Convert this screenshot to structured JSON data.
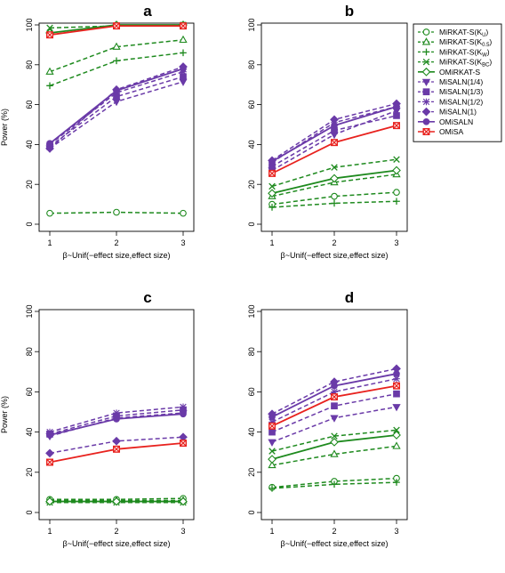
{
  "chart_data": [
    {
      "type": "line",
      "panel": "a",
      "x": [
        1,
        2,
        3
      ],
      "xticks": [
        "1",
        "2",
        "3"
      ],
      "xlabel": "β~Unif(−effect size,effect size)",
      "ylabel": "Power (%)",
      "ylim": [
        0,
        100
      ],
      "yticks": [
        "0",
        "20",
        "40",
        "60",
        "80",
        "100"
      ],
      "series": [
        {
          "name": "MiRKAT-S(K_U)",
          "values": [
            5.5,
            6,
            5.5
          ]
        },
        {
          "name": "MiRKAT-S(K_0.5)",
          "values": [
            76.5,
            89,
            92.5
          ]
        },
        {
          "name": "MiRKAT-S(K_W)",
          "values": [
            69.5,
            82,
            86
          ]
        },
        {
          "name": "MiRKAT-S(K_BC)",
          "values": [
            98.5,
            99.5,
            100
          ]
        },
        {
          "name": "OMiRKAT-S",
          "values": [
            96,
            100,
            100
          ]
        },
        {
          "name": "MiSALN(1/4)",
          "values": [
            38,
            61.5,
            71.5
          ]
        },
        {
          "name": "MiSALN(1/3)",
          "values": [
            39,
            64,
            74
          ]
        },
        {
          "name": "MiSALN(1/2)",
          "values": [
            40,
            66,
            76.5
          ]
        },
        {
          "name": "MiSALN(1)",
          "values": [
            38,
            67.5,
            79
          ]
        },
        {
          "name": "OMiSALN",
          "values": [
            40.5,
            67,
            78
          ]
        },
        {
          "name": "OMiSA",
          "values": [
            95,
            99.5,
            99.5
          ]
        }
      ]
    },
    {
      "type": "line",
      "panel": "b",
      "x": [
        1,
        2,
        3
      ],
      "xticks": [
        "1",
        "2",
        "3"
      ],
      "xlabel": "β~Unif(−effect size,effect size)",
      "ylabel": "",
      "ylim": [
        0,
        100
      ],
      "yticks": [
        "0",
        "20",
        "40",
        "60",
        "80",
        "100"
      ],
      "series": [
        {
          "name": "MiRKAT-S(K_U)",
          "values": [
            10,
            14,
            16
          ]
        },
        {
          "name": "MiRKAT-S(K_0.5)",
          "values": [
            14,
            21,
            25
          ]
        },
        {
          "name": "MiRKAT-S(K_W)",
          "values": [
            8.5,
            10.5,
            11.5
          ]
        },
        {
          "name": "MiRKAT-S(K_BC)",
          "values": [
            19,
            28.5,
            32.5
          ]
        },
        {
          "name": "OMiRKAT-S",
          "values": [
            15.5,
            23,
            27
          ]
        },
        {
          "name": "MiSALN(1/4)",
          "values": [
            27,
            45,
            57
          ]
        },
        {
          "name": "MiSALN(1/3)",
          "values": [
            29,
            47,
            54.5
          ]
        },
        {
          "name": "MiSALN(1/2)",
          "values": [
            31,
            51,
            59
          ]
        },
        {
          "name": "MiSALN(1)",
          "values": [
            32,
            52.5,
            60.5
          ]
        },
        {
          "name": "OMiSALN",
          "values": [
            31.5,
            49.5,
            59
          ]
        },
        {
          "name": "OMiSA",
          "values": [
            25.5,
            41,
            49.5
          ]
        }
      ]
    },
    {
      "type": "line",
      "panel": "c",
      "x": [
        1,
        2,
        3
      ],
      "xticks": [
        "1",
        "2",
        "3"
      ],
      "xlabel": "β~Unif(−effect size,effect size)",
      "ylabel": "Power (%)",
      "ylim": [
        0,
        100
      ],
      "yticks": [
        "0",
        "20",
        "40",
        "60",
        "80",
        "100"
      ],
      "series": [
        {
          "name": "MiRKAT-S(K_U)",
          "values": [
            6.5,
            6.5,
            7
          ]
        },
        {
          "name": "MiRKAT-S(K_0.5)",
          "values": [
            6,
            6,
            6
          ]
        },
        {
          "name": "MiRKAT-S(K_W)",
          "values": [
            5.5,
            5.5,
            5.5
          ]
        },
        {
          "name": "MiRKAT-S(K_BC)",
          "values": [
            5,
            5,
            5
          ]
        },
        {
          "name": "OMiRKAT-S",
          "values": [
            5.5,
            5.5,
            5.5
          ]
        },
        {
          "name": "MiSALN(1/4)",
          "values": [
            38,
            47,
            49.5
          ]
        },
        {
          "name": "MiSALN(1/3)",
          "values": [
            39,
            48,
            51
          ]
        },
        {
          "name": "MiSALN(1/2)",
          "values": [
            40,
            49.5,
            52.5
          ]
        },
        {
          "name": "MiSALN(1)",
          "values": [
            29.5,
            35.5,
            37.5
          ]
        },
        {
          "name": "OMiSALN",
          "values": [
            38.5,
            46.5,
            49
          ]
        },
        {
          "name": "OMiSA",
          "values": [
            25,
            31.5,
            34.5
          ]
        }
      ]
    },
    {
      "type": "line",
      "panel": "d",
      "x": [
        1,
        2,
        3
      ],
      "xticks": [
        "1",
        "2",
        "3"
      ],
      "xlabel": "β~Unif(−effect size,effect size)",
      "ylabel": "",
      "ylim": [
        0,
        100
      ],
      "yticks": [
        "0",
        "20",
        "40",
        "60",
        "80",
        "100"
      ],
      "series": [
        {
          "name": "MiRKAT-S(K_U)",
          "values": [
            12.5,
            15.5,
            17
          ]
        },
        {
          "name": "MiRKAT-S(K_0.5)",
          "values": [
            23.5,
            29,
            33
          ]
        },
        {
          "name": "MiRKAT-S(K_W)",
          "values": [
            12,
            14,
            15
          ]
        },
        {
          "name": "MiRKAT-S(K_BC)",
          "values": [
            30.5,
            38,
            41
          ]
        },
        {
          "name": "OMiRKAT-S",
          "values": [
            26.5,
            35,
            38.5
          ]
        },
        {
          "name": "MiSALN(1/4)",
          "values": [
            35,
            47,
            52.5
          ]
        },
        {
          "name": "MiSALN(1/3)",
          "values": [
            40,
            53,
            59
          ]
        },
        {
          "name": "MiSALN(1/2)",
          "values": [
            45,
            60,
            66.5
          ]
        },
        {
          "name": "MiSALN(1)",
          "values": [
            49,
            65,
            71.5
          ]
        },
        {
          "name": "OMiSALN",
          "values": [
            47.5,
            63,
            69
          ]
        },
        {
          "name": "OMiSA",
          "values": [
            43,
            57.5,
            63
          ]
        }
      ]
    }
  ],
  "legend": {
    "placement": "right",
    "items": [
      {
        "base": "MiRKAT-S(",
        "sub": "U",
        "close": ")",
        "color": "#1e8a1e",
        "marker": "circle-open",
        "dashed": true
      },
      {
        "base": "MiRKAT-S(",
        "sub": "0.5",
        "close": ")",
        "color": "#1e8a1e",
        "marker": "triangle-open",
        "dashed": true
      },
      {
        "base": "MiRKAT-S(",
        "sub": "W",
        "close": ")",
        "color": "#1e8a1e",
        "marker": "plus",
        "dashed": true
      },
      {
        "base": "MiRKAT-S(",
        "sub": "BC",
        "close": ")",
        "color": "#1e8a1e",
        "marker": "cross",
        "dashed": true
      },
      {
        "base": "OMiRKAT-S",
        "sub": "",
        "close": "",
        "color": "#1e8a1e",
        "marker": "diamond-open",
        "dashed": false
      },
      {
        "base": "MiSALN(1/4)",
        "sub": "",
        "close": "",
        "color": "#6a3aa8",
        "marker": "triangle-down",
        "dashed": true
      },
      {
        "base": "MiSALN(1/3)",
        "sub": "",
        "close": "",
        "color": "#6a3aa8",
        "marker": "square",
        "dashed": true
      },
      {
        "base": "MiSALN(1/2)",
        "sub": "",
        "close": "",
        "color": "#6a3aa8",
        "marker": "asterisk",
        "dashed": true
      },
      {
        "base": "MiSALN(1)",
        "sub": "",
        "close": "",
        "color": "#6a3aa8",
        "marker": "diamond",
        "dashed": true
      },
      {
        "base": "OMiSALN",
        "sub": "",
        "close": "",
        "color": "#6a3aa8",
        "marker": "circle",
        "dashed": false
      },
      {
        "base": "OMiSA",
        "sub": "",
        "close": "",
        "color": "#e8221e",
        "marker": "square-cross",
        "dashed": false
      }
    ],
    "sub_prefix": "K"
  }
}
